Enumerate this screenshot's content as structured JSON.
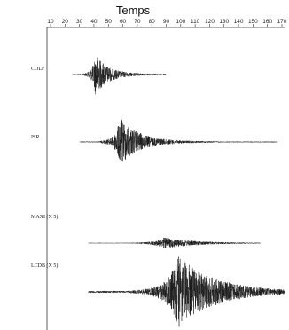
{
  "chart_data": {
    "type": "line",
    "title": "Temps",
    "xlabel": "Temps",
    "ylabel": "",
    "x_ticks": [
      10,
      20,
      30,
      40,
      50,
      60,
      70,
      80,
      90,
      100,
      110,
      120,
      130,
      140,
      150,
      160,
      170
    ],
    "xlim": [
      10,
      170
    ],
    "grid": false,
    "legend": "none",
    "colors": {
      "trace": "#1a1a1a",
      "axis": "#333333"
    },
    "series": [
      {
        "name": "COLF",
        "trace_start": 25,
        "trace_end": 90,
        "onset": 29,
        "peak_time": 41,
        "peak_amplitude": 1.0,
        "decay": 0.12,
        "noise_level": 0.03
      },
      {
        "name": "ISR",
        "trace_start": 30,
        "trace_end": 167,
        "onset": 40,
        "peak_time": 58,
        "peak_amplitude": 1.0,
        "decay": 0.08,
        "noise_level": 0.02
      },
      {
        "name": "MAXI (X 5)",
        "trace_start": 36,
        "trace_end": 155,
        "onset": 50,
        "peak_time": 88,
        "peak_amplitude": 0.45,
        "decay": 0.05,
        "noise_level": 0.02
      },
      {
        "name": "LCDB (X 5)",
        "trace_start": 36,
        "trace_end": 172,
        "onset": 58,
        "peak_time": 98,
        "peak_amplitude": 1.0,
        "decay": 0.04,
        "noise_level": 0.03
      }
    ]
  }
}
